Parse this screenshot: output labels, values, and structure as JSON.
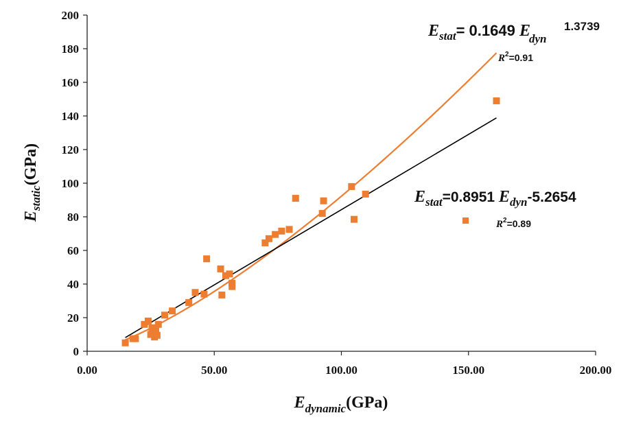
{
  "chart_data": {
    "type": "scatter",
    "title": "",
    "xlabel": {
      "main": "E",
      "sub": "dynamic",
      "unit": "(GPa)"
    },
    "ylabel": {
      "main": "E",
      "sub": "static",
      "unit": "(GPa)"
    },
    "xlim": [
      0,
      200
    ],
    "ylim": [
      0,
      200
    ],
    "x_ticks": [
      0,
      50,
      100,
      150,
      200
    ],
    "x_tick_labels": [
      "0.00",
      "50.00",
      "100.00",
      "150.00",
      "200.00"
    ],
    "y_ticks": [
      0,
      20,
      40,
      60,
      80,
      100,
      120,
      140,
      160,
      180,
      200
    ],
    "y_tick_labels": [
      "0",
      "20",
      "40",
      "60",
      "80",
      "100",
      "120",
      "140",
      "160",
      "180",
      "200"
    ],
    "grid": false,
    "series": [
      {
        "marker": "square",
        "color": "#ED7D31",
        "points": [
          [
            15,
            5
          ],
          [
            18,
            7.5
          ],
          [
            19,
            7.5
          ],
          [
            22.5,
            16
          ],
          [
            24,
            18
          ],
          [
            25,
            10
          ],
          [
            25.5,
            14
          ],
          [
            26,
            11
          ],
          [
            26.5,
            8.5
          ],
          [
            27,
            12
          ],
          [
            27.5,
            9.5
          ],
          [
            28,
            16
          ],
          [
            30.5,
            21.5
          ],
          [
            33.5,
            24
          ],
          [
            40,
            29
          ],
          [
            42.5,
            35
          ],
          [
            46,
            34
          ],
          [
            47,
            55
          ],
          [
            52.5,
            49
          ],
          [
            53,
            33.5
          ],
          [
            54.5,
            45
          ],
          [
            56,
            46
          ],
          [
            57,
            38.5
          ],
          [
            57,
            40.5
          ],
          [
            70,
            64.5
          ],
          [
            71.5,
            67
          ],
          [
            74,
            69.5
          ],
          [
            76.5,
            71.5
          ],
          [
            79.5,
            72.5
          ],
          [
            82,
            91
          ],
          [
            92.5,
            82
          ],
          [
            93,
            89.5
          ],
          [
            104,
            98
          ],
          [
            105,
            78.5
          ],
          [
            109.5,
            93.5
          ],
          [
            161,
            149
          ]
        ]
      }
    ],
    "fits": [
      {
        "type": "power",
        "color": "#ED7D31",
        "coefficient": 0.1649,
        "exponent": 1.3739,
        "x_range": [
          15,
          161
        ],
        "equation": {
          "lhs_main": "E",
          "lhs_sub": "stat",
          "rhs": "= 0.1649 ",
          "rhs_main": "E",
          "rhs_sub": "dyn",
          "rhs_sup": "1.3739"
        },
        "r2_text": "=0.91"
      },
      {
        "type": "linear",
        "color": "#000000",
        "slope": 0.8951,
        "intercept": -5.2654,
        "x_range": [
          15,
          161
        ],
        "equation": {
          "lhs_main": "E",
          "lhs_sub": "stat",
          "rhs": "=0.8951 ",
          "rhs_main": "E",
          "rhs_sub": "dyn",
          "rhs_tail": "-5.2654"
        },
        "r2_text": "=0.89"
      }
    ],
    "r2_label": "R"
  }
}
